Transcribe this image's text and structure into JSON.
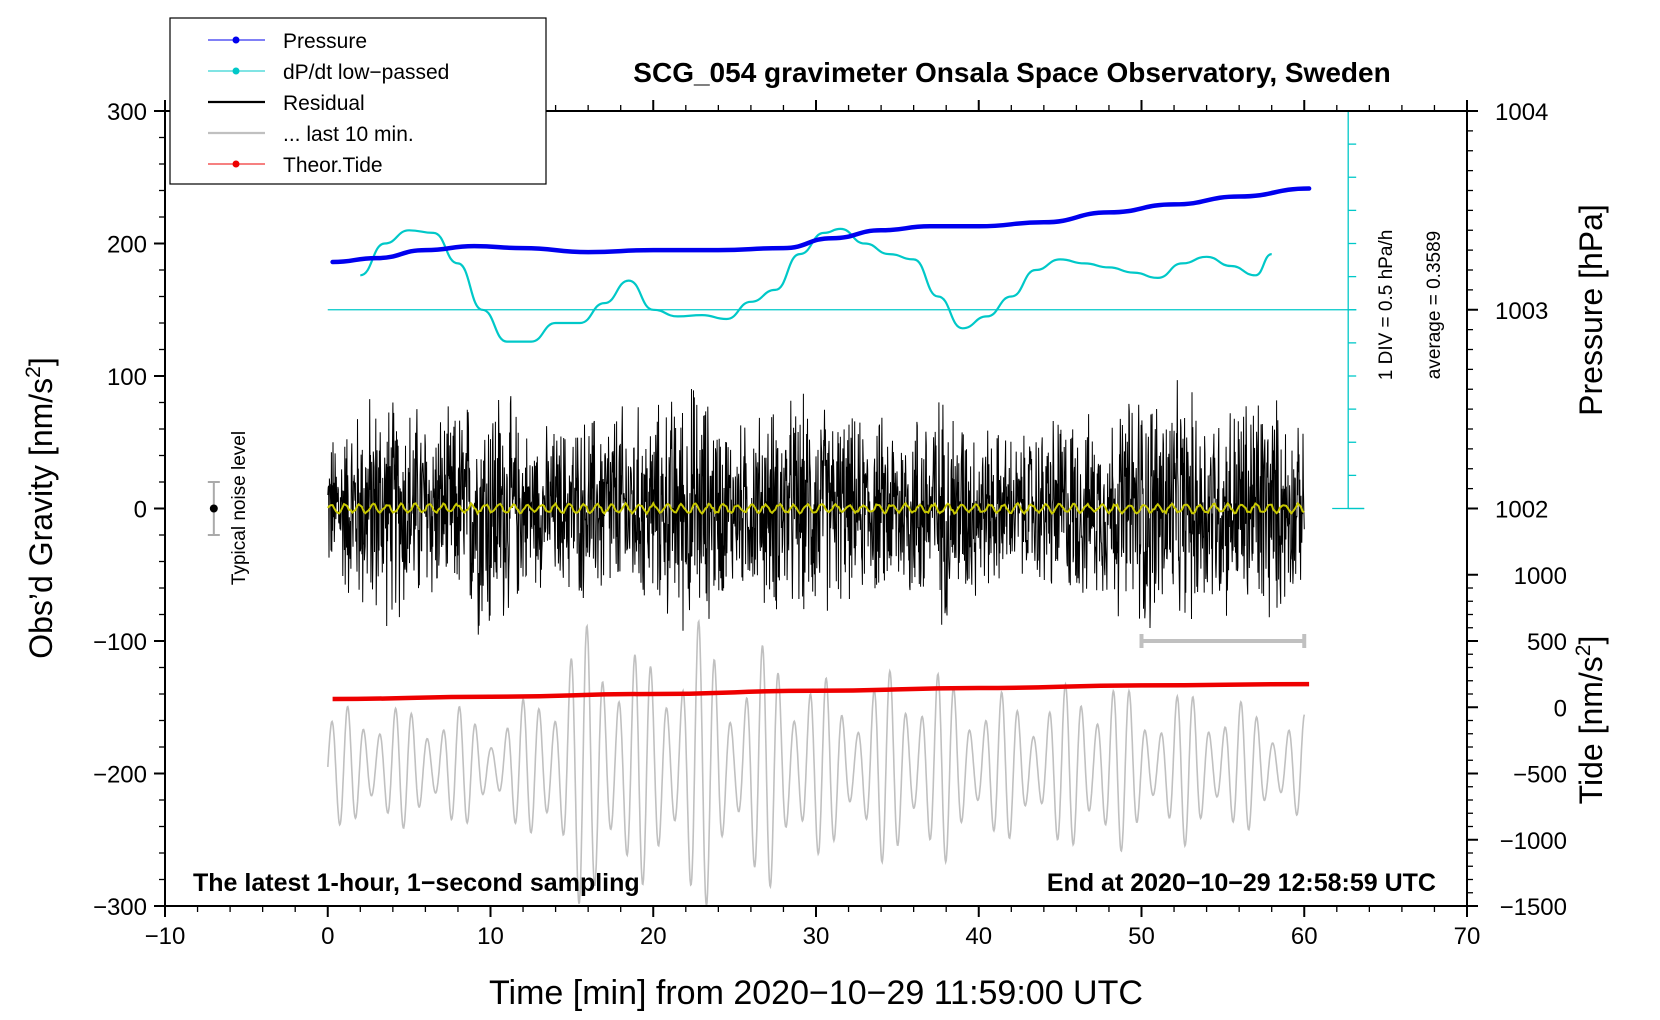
{
  "chart_data": {
    "type": "line",
    "title": "SCG_054 gravimeter Onsala Space Observatory, Sweden",
    "xlabel": "Time [min] from 2020−10−29 11:59:00 UTC",
    "ylabel_left": "Obs’d Gravity [nm/s",
    "ylabel_left_sup": "2",
    "ylabel_left_end": "]",
    "ylabel_right_pressure": "Pressure [hPa]",
    "ylabel_right_tide": "Tide [nm/s",
    "ylabel_right_tide_sup": "2",
    "ylabel_right_tide_end": "]",
    "xlim": [
      -10,
      70
    ],
    "ylim_left": [
      -300,
      300
    ],
    "x_ticks": [
      -10,
      0,
      10,
      20,
      30,
      40,
      50,
      60,
      70
    ],
    "x_tick_labels": [
      "−10",
      "0",
      "10",
      "20",
      "30",
      "40",
      "50",
      "60",
      "70"
    ],
    "y_ticks_left": [
      -300,
      -200,
      -100,
      0,
      100,
      200,
      300
    ],
    "y_tick_labels_left": [
      "−300",
      "−200",
      "−100",
      "0",
      "100",
      "200",
      "300"
    ],
    "pressure_axis": {
      "ticks": [
        1002,
        1003,
        1004
      ],
      "labels": [
        "1002",
        "1003",
        "1004"
      ],
      "unit_per_hpa_nm": 150,
      "ref_hpa": 1003,
      "ref_gravity": 150
    },
    "tide_axis": {
      "ticks": [
        -1500,
        -1000,
        -500,
        0,
        500,
        1000
      ],
      "labels": [
        "−1500",
        "−1000",
        "−500",
        "0",
        "500",
        "1000"
      ],
      "gravity_per_tide": 0.1,
      "zero_gravity": -150
    },
    "dpdt_scale": {
      "label": "1 DIV = 0.5 hPa/h",
      "average_label": "average = 0.3589",
      "baseline_gravity": 150,
      "div_gravity": 25,
      "x_minute": 62.7,
      "top_gravity": 300,
      "bottom_gravity": 0
    },
    "noise_marker": {
      "label": "Typical noise level",
      "x": -7,
      "y": 0,
      "err": 20
    },
    "scale_bar": {
      "x0": 50,
      "x1": 60,
      "y": -100
    },
    "footer_left": "The latest 1-hour, 1−second sampling",
    "footer_right": "End at 2020−10−29 12:58:59 UTC",
    "series": [
      {
        "name": "Pressure",
        "color": "#0000ee",
        "unit": "hPa",
        "x": [
          0.3,
          3,
          6,
          9,
          12,
          16,
          20,
          24,
          28,
          31,
          34,
          37,
          40,
          44,
          48,
          52,
          56,
          60.3
        ],
        "values": [
          1003.24,
          1003.26,
          1003.3,
          1003.32,
          1003.31,
          1003.29,
          1003.3,
          1003.3,
          1003.31,
          1003.36,
          1003.4,
          1003.42,
          1003.42,
          1003.44,
          1003.49,
          1003.53,
          1003.57,
          1003.61
        ]
      },
      {
        "name": "dP/dt low−passed",
        "color": "#00c8c8",
        "unit": "gravity-plot units",
        "x": [
          2,
          3.5,
          5,
          6.5,
          8,
          9.5,
          11,
          12.5,
          14,
          15.5,
          17,
          18.5,
          20,
          21.5,
          23,
          24.5,
          26,
          27.5,
          29,
          30.5,
          31.5,
          33,
          34.5,
          36,
          37.5,
          39,
          40.5,
          42,
          43.5,
          45,
          46.5,
          48,
          49.5,
          51,
          52.5,
          54,
          55.5,
          57,
          58
        ],
        "values": [
          176,
          200,
          210,
          208,
          185,
          150,
          126,
          126,
          140,
          140,
          155,
          172,
          150,
          145,
          146,
          143,
          156,
          165,
          192,
          208,
          211,
          200,
          192,
          188,
          160,
          136,
          145,
          160,
          180,
          188,
          185,
          182,
          178,
          174,
          185,
          190,
          183,
          176,
          192
        ]
      },
      {
        "name": "Residual",
        "color": "#000000",
        "x_range": [
          0,
          60
        ],
        "amplitude_envelope": [
          60,
          100,
          95,
          80,
          120,
          65,
          75,
          90,
          85,
          110,
          70,
          90,
          95,
          75,
          80,
          100,
          75,
          60,
          85,
          75,
          110,
          100,
          90,
          110,
          60
        ]
      },
      {
        "name": "... last 10 min.",
        "color": "#c0c0c0",
        "x_range": [
          0,
          60
        ],
        "center_gravity": -195,
        "amplitude_envelope": [
          40,
          55,
          45,
          50,
          35,
          55,
          105,
          115,
          80,
          120,
          75,
          100,
          70,
          60,
          80,
          75,
          60,
          55,
          60,
          80,
          50,
          60,
          55,
          45,
          40
        ]
      },
      {
        "name": "Theor.Tide",
        "color": "#ee0000",
        "unit": "nm/s2",
        "x": [
          0.3,
          10,
          20,
          30,
          40,
          50,
          60.3
        ],
        "values": [
          62,
          80,
          100,
          125,
          145,
          165,
          175
        ]
      }
    ],
    "smoothed_residual": {
      "color": "#c8c800",
      "level": 0
    }
  },
  "legend": {
    "items": [
      {
        "label": "Pressure",
        "color": "#0000ee",
        "style": "line-dot"
      },
      {
        "label": "dP/dt low−passed",
        "color": "#00c8c8",
        "style": "line-dot"
      },
      {
        "label": "Residual",
        "color": "#000000",
        "style": "line"
      },
      {
        "label": "... last 10 min.",
        "color": "#c0c0c0",
        "style": "line"
      },
      {
        "label": "Theor.Tide",
        "color": "#ee0000",
        "style": "line-dot"
      }
    ]
  }
}
